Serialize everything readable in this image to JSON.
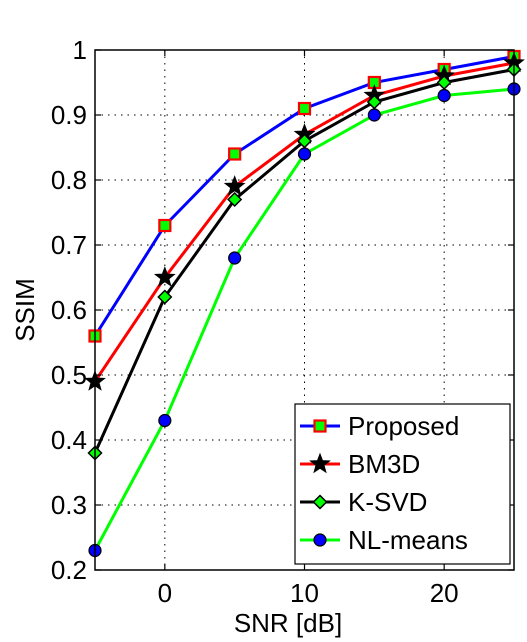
{
  "chart_data": {
    "type": "line",
    "xlabel": "SNR [dB]",
    "ylabel": "SSIM",
    "xlim": [
      -5,
      25
    ],
    "ylim": [
      0.2,
      1.0
    ],
    "x_ticks": [
      0,
      10,
      20
    ],
    "y_ticks": [
      0.2,
      0.3,
      0.4,
      0.5,
      0.6,
      0.7,
      0.8,
      0.9,
      1.0
    ],
    "x_tick_labels": [
      "0",
      "10",
      "20"
    ],
    "y_tick_labels": [
      "0.2",
      "0.3",
      "0.4",
      "0.5",
      "0.6",
      "0.7",
      "0.8",
      "0.9",
      "1"
    ],
    "grid": true,
    "legend_position": "bottom-right",
    "x": [
      -5,
      0,
      5,
      10,
      15,
      20,
      25
    ],
    "series": [
      {
        "name": "Proposed",
        "values": [
          0.56,
          0.73,
          0.84,
          0.91,
          0.95,
          0.97,
          0.99
        ],
        "line_color": "#0000ff",
        "marker": "square",
        "marker_edge": "#ff0000",
        "marker_fill": "#00ff00"
      },
      {
        "name": "BM3D",
        "values": [
          0.49,
          0.65,
          0.79,
          0.87,
          0.93,
          0.96,
          0.98
        ],
        "line_color": "#ff0000",
        "marker": "star",
        "marker_edge": "#000000",
        "marker_fill": "#000000"
      },
      {
        "name": "K-SVD",
        "values": [
          0.38,
          0.62,
          0.77,
          0.86,
          0.92,
          0.95,
          0.97
        ],
        "line_color": "#000000",
        "marker": "diamond",
        "marker_edge": "#000000",
        "marker_fill": "#00ff00"
      },
      {
        "name": "NL-means",
        "values": [
          0.23,
          0.43,
          0.68,
          0.84,
          0.9,
          0.93,
          0.94
        ],
        "line_color": "#00ff00",
        "marker": "circle",
        "marker_edge": "#000000",
        "marker_fill": "#0000ff"
      }
    ]
  }
}
